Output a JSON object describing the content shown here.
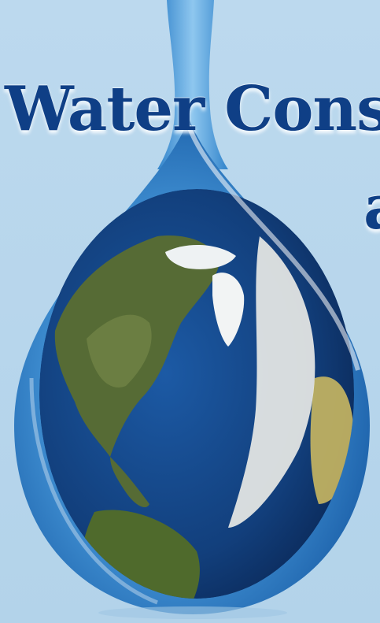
{
  "headline": {
    "line_1": "Water Cons",
    "line_2": "a"
  },
  "colors": {
    "background": "#b9d7ea",
    "headline_text": "#0f3f86",
    "drop_water": "#2b7cc4",
    "ocean": "#123f7c",
    "land": "#556b2f"
  },
  "image": {
    "subject": "earth-in-water-drop"
  }
}
